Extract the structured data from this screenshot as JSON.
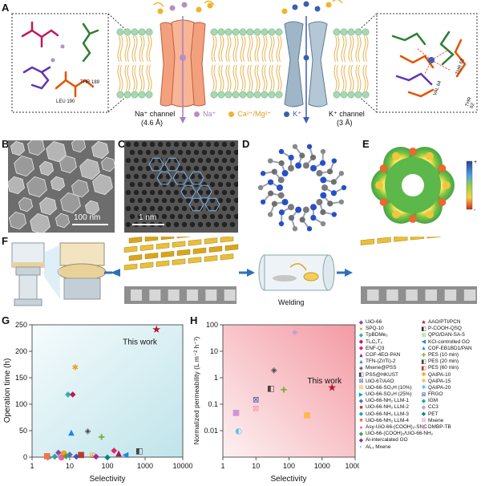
{
  "panels": {
    "A": "A",
    "B": "B",
    "C": "C",
    "D": "D",
    "E": "E",
    "F": "F",
    "G": "G",
    "H": "H"
  },
  "panelA": {
    "na_channel": "Na⁺ channel",
    "na_size": "(4.6 Å)",
    "k_channel": "K⁺ channel",
    "k_size": "(3 Å)",
    "legend_na": "Na⁺",
    "legend_ca": "Ca²⁺/Mg²⁺",
    "legend_k": "K⁺",
    "left_labels": [
      "THR 189",
      "LEU 190"
    ],
    "right_labels": [
      "THR 63",
      "VAL 64",
      "THR 62"
    ]
  },
  "panelB": {
    "scale": "100 nm"
  },
  "panelC": {
    "scale": "1 nm"
  },
  "panelE": {
    "plus": "+",
    "minus": "-"
  },
  "panelF": {
    "welding": "Welding"
  },
  "colors": {
    "na_channel": "#f3a07f",
    "k_channel": "#9fb6c9",
    "membrane_bead": "#a8d8b0",
    "na_ion": "#b58fc4",
    "ca_ion": "#f0b429",
    "k_ion": "#3d5fb0",
    "g_bg_top": "#e8f4f8",
    "g_bg_bottom": "#cfe9ec",
    "h_bg_right": "#f4a6ad"
  },
  "chart_data": [
    {
      "type": "scatter",
      "panel": "G",
      "xlabel": "Selectivity",
      "ylabel": "Operation time (h)",
      "xscale": "log",
      "xlim": [
        1,
        10000
      ],
      "ylim": [
        0,
        250
      ],
      "xticks": [
        "1",
        "10",
        "100",
        "1000",
        "10000"
      ],
      "yticks": [
        "0",
        "50",
        "100",
        "150",
        "200",
        "250"
      ],
      "annotation": "This work",
      "points": [
        {
          "x": 2000,
          "y": 240,
          "color": "#b5162b",
          "symbol": "★"
        },
        {
          "x": 14,
          "y": 170,
          "color": "#e8a21b",
          "symbol": "✱"
        },
        {
          "x": 9,
          "y": 120,
          "color": "#2bb5a8",
          "symbol": "◆"
        },
        {
          "x": 12,
          "y": 120,
          "color": "#c2185b",
          "symbol": "◆"
        },
        {
          "x": 11,
          "y": 48,
          "color": "#1e88e5",
          "symbol": "▲"
        },
        {
          "x": 30,
          "y": 50,
          "color": "#444444",
          "symbol": "◈"
        },
        {
          "x": 70,
          "y": 38,
          "color": "#7cb342",
          "symbol": "✚"
        },
        {
          "x": 5,
          "y": 10,
          "color": "#8e44ad",
          "symbol": "◆"
        },
        {
          "x": 7,
          "y": 8,
          "color": "#e8a21b",
          "symbol": "●"
        },
        {
          "x": 10,
          "y": 6,
          "color": "#5c6bc0",
          "symbol": "◆"
        },
        {
          "x": 20,
          "y": 5,
          "color": "#c0392b",
          "symbol": "■"
        },
        {
          "x": 40,
          "y": 4,
          "color": "#f39c12",
          "symbol": "⊞"
        },
        {
          "x": 150,
          "y": 14,
          "color": "#e91e63",
          "symbol": "◆"
        },
        {
          "x": 200,
          "y": 8,
          "color": "#ad1457",
          "symbol": "▲"
        },
        {
          "x": 300,
          "y": 5,
          "color": "#1e88e5",
          "symbol": "◀"
        },
        {
          "x": 700,
          "y": 12,
          "color": "#444444",
          "symbol": "◧"
        },
        {
          "x": 3,
          "y": 1,
          "color": "#00acc1",
          "symbol": "▶"
        },
        {
          "x": 4,
          "y": 2,
          "color": "#26a69a",
          "symbol": "◆"
        },
        {
          "x": 6,
          "y": 1,
          "color": "#f06292",
          "symbol": "●"
        },
        {
          "x": 15,
          "y": 2,
          "color": "#3f51b5",
          "symbol": "◆"
        },
        {
          "x": 50,
          "y": 2,
          "color": "#9c27b0",
          "symbol": "◆"
        },
        {
          "x": 100,
          "y": 1,
          "color": "#00897b",
          "symbol": "◆"
        },
        {
          "x": 2.5,
          "y": 3,
          "color": "#ff7043",
          "symbol": "■"
        },
        {
          "x": 8,
          "y": 3,
          "color": "#43a047",
          "symbol": "◆"
        }
      ]
    },
    {
      "type": "scatter",
      "panel": "H",
      "xlabel": "Selectivity",
      "ylabel": "Normalized permeability (L m⁻² h⁻¹)",
      "xscale": "log",
      "yscale": "log",
      "xlim": [
        1,
        10000
      ],
      "ylim": [
        0.001,
        100
      ],
      "xticks": [
        "1",
        "10",
        "100",
        "1000",
        "10000"
      ],
      "yticks": [
        "0.01",
        "0.1",
        "1",
        "10",
        "100"
      ],
      "annotation": "This work",
      "points": [
        {
          "x": 2000,
          "y": 0.4,
          "color": "#b5162b",
          "symbol": "★"
        },
        {
          "x": 150,
          "y": 55,
          "color": "#b39ddb",
          "symbol": "◈"
        },
        {
          "x": 35,
          "y": 2,
          "color": "#444444",
          "symbol": "◈"
        },
        {
          "x": 70,
          "y": 0.35,
          "color": "#7cb342",
          "symbol": "✚"
        },
        {
          "x": 28,
          "y": 0.4,
          "color": "#444444",
          "symbol": "◧"
        },
        {
          "x": 10,
          "y": 0.15,
          "color": "#3f51b5",
          "symbol": "⊠"
        },
        {
          "x": 10,
          "y": 0.07,
          "color": "#f48fb1",
          "symbol": "⊠"
        },
        {
          "x": 2.5,
          "y": 0.05,
          "color": "#ce93d8",
          "symbol": "■"
        },
        {
          "x": 3,
          "y": 0.01,
          "color": "#4fc3f7",
          "symbol": "◐"
        },
        {
          "x": 350,
          "y": 0.04,
          "color": "#ffb74d",
          "symbol": "■"
        }
      ]
    }
  ],
  "legend": [
    {
      "label": "UiO-66",
      "color": "#8e44ad",
      "symbol": "◆"
    },
    {
      "label": "SPQ-10",
      "color": "#e8a21b",
      "symbol": "●"
    },
    {
      "label": "TpBDMe₂",
      "color": "#2bb5a8",
      "symbol": "◆"
    },
    {
      "label": "Ti₃C₂Tₓ",
      "color": "#c2185b",
      "symbol": "◆"
    },
    {
      "label": "ENF-Q3",
      "color": "#e91e63",
      "symbol": "◆"
    },
    {
      "label": "COF-4EO-PAN",
      "color": "#ad1457",
      "symbol": "▲"
    },
    {
      "label": "TFN-(Zr/Ti)-2",
      "color": "#1e88e5",
      "symbol": "▲"
    },
    {
      "label": "Mxene@PSS",
      "color": "#444444",
      "symbol": "◈"
    },
    {
      "label": "PSS@HKUST",
      "color": "#444444",
      "symbol": "◧"
    },
    {
      "label": "UiO-67/AAO",
      "color": "#3f51b5",
      "symbol": "⊠"
    },
    {
      "label": "UiO-66-SO₃H (10%)",
      "color": "#f39c12",
      "symbol": "⊞"
    },
    {
      "label": "UiO-66-SO₃H (25%)",
      "color": "#00acc1",
      "symbol": "▶"
    },
    {
      "label": "UiO-66-NH₂ LLM-1",
      "color": "#5c6bc0",
      "symbol": "◆"
    },
    {
      "label": "UiO-66-NH₂ LLM-2",
      "color": "#c0392b",
      "symbol": "■"
    },
    {
      "label": "UiO-66-NH₂ LLM-3",
      "color": "#26a69a",
      "symbol": "◆"
    },
    {
      "label": "UiO-66-NH₂ LLM-4",
      "color": "#ff7043",
      "symbol": "■"
    },
    {
      "label": "Asy-UiO-66-(COOH)₂-SNC",
      "color": "#f06292",
      "symbol": "●"
    },
    {
      "label": "UiO-66-(COOH)₂/UiO-66-NH₂",
      "color": "#43a047",
      "symbol": "◆"
    },
    {
      "label": "Al-intercalated GO",
      "color": "#9c27b0",
      "symbol": "◆"
    },
    {
      "label": "Al₁₃ Mxene",
      "color": "#4fc3f7",
      "symbol": "◐"
    },
    {
      "label": "AAO/PTI/PCN",
      "color": "#b5162b",
      "symbol": "★"
    },
    {
      "label": "P-COOH-QSQ",
      "color": "#333333",
      "symbol": "◧"
    },
    {
      "label": "QPO/DAN-SA-5",
      "color": "#8bc34a",
      "symbol": "⊞"
    },
    {
      "label": "KCl-controlled GO",
      "color": "#1e88e5",
      "symbol": "◀"
    },
    {
      "label": "COF-EB1BD1/PAN",
      "color": "#1e88e5",
      "symbol": "▲"
    },
    {
      "label": "PES (10 min)",
      "color": "#7cb342",
      "symbol": "✚"
    },
    {
      "label": "PES (20 min)",
      "color": "#444444",
      "symbol": "◧"
    },
    {
      "label": "PES (60 min)",
      "color": "#c0392b",
      "symbol": "◧"
    },
    {
      "label": "QAIPA-10",
      "color": "#e8a21b",
      "symbol": "✱"
    },
    {
      "label": "QAIPA-15",
      "color": "#ffb74d",
      "symbol": "✱"
    },
    {
      "label": "QAIPA-20",
      "color": "#4fc3f7",
      "symbol": "✱"
    },
    {
      "label": "FRGO",
      "color": "#3f51b5",
      "symbol": "⊠"
    },
    {
      "label": "IGM",
      "color": "#26a69a",
      "symbol": "◆"
    },
    {
      "label": "CC3",
      "color": "#b39ddb",
      "symbol": "◆"
    },
    {
      "label": "PET",
      "color": "#00897b",
      "symbol": "◆"
    },
    {
      "label": "Mxene",
      "color": "#f48fb1",
      "symbol": "⊠"
    },
    {
      "label": "DMBP-TB",
      "color": "#ce93d8",
      "symbol": "■"
    }
  ]
}
